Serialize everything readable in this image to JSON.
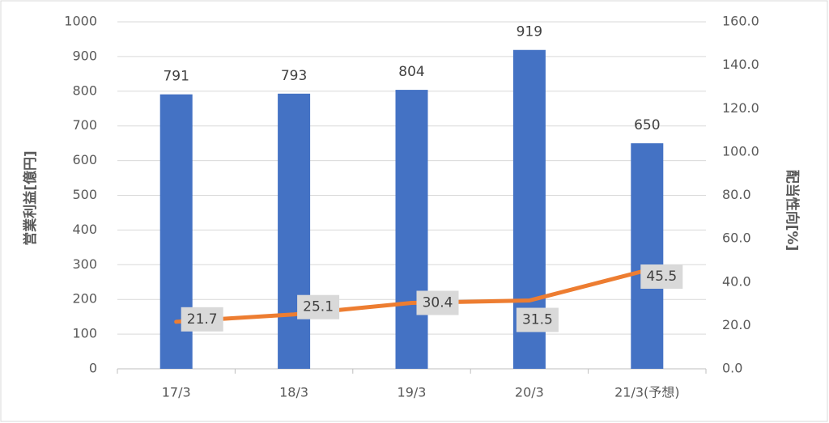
{
  "chart_data": {
    "type": "bar",
    "categories": [
      "17/3",
      "18/3",
      "19/3",
      "20/3",
      "21/3(予想)"
    ],
    "y_label": "営業利益[億円]",
    "y2_label": "配当性向[%]",
    "ylim": [
      0,
      1000
    ],
    "yticks": [
      0,
      100,
      200,
      300,
      400,
      500,
      600,
      700,
      800,
      900,
      1000
    ],
    "y2lim": [
      0,
      160
    ],
    "y2ticks": [
      {
        "value": 0,
        "label": "0.0"
      },
      {
        "value": 20,
        "label": "20.0"
      },
      {
        "value": 40,
        "label": "40.0"
      },
      {
        "value": 60,
        "label": "60.0"
      },
      {
        "value": 80,
        "label": "80.0"
      },
      {
        "value": 100,
        "label": "100.0"
      },
      {
        "value": 120,
        "label": "120.0"
      },
      {
        "value": 140,
        "label": "140.0"
      },
      {
        "value": 160,
        "label": "160.0"
      }
    ],
    "grid": true,
    "series": [
      {
        "type": "bar",
        "color": "#4472c4",
        "values": [
          791,
          793,
          804,
          919,
          650
        ]
      },
      {
        "type": "line",
        "axis": "y2",
        "color": "#ed7d31",
        "values": [
          21.7,
          25.1,
          30.4,
          31.5,
          45.5
        ]
      }
    ]
  }
}
